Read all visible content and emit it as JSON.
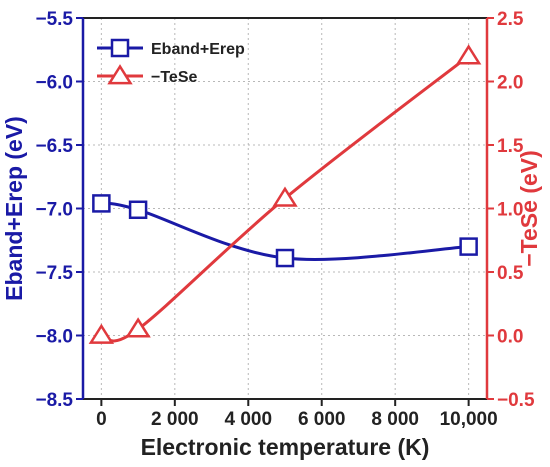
{
  "chart_data": {
    "type": "line",
    "dual_axis": true,
    "grid": true,
    "legend_position": "top-left",
    "xlabel": "Electronic temperature (K)",
    "ylabel_left": "Eband+Erep (eV)",
    "ylabel_right": "−TeSe (eV)",
    "xlim": [
      -500,
      10500
    ],
    "ylim_left": [
      -8.5,
      -5.5
    ],
    "ylim_right": [
      -0.5,
      2.5
    ],
    "x_ticks": [
      0,
      2000,
      4000,
      6000,
      8000,
      10000
    ],
    "x_tick_labels": [
      "0",
      "2 000",
      "4 000",
      "6 000",
      "8 000",
      "10,000"
    ],
    "y_left_ticks": [
      -8.5,
      -8.0,
      -7.5,
      -7.0,
      -6.5,
      -6.0,
      -5.5
    ],
    "y_left_tick_labels": [
      "−8.5",
      "−8.0",
      "−7.5",
      "−7.0",
      "−6.5",
      "−6.0",
      "−5.5"
    ],
    "y_right_ticks": [
      -0.5,
      0.0,
      0.5,
      1.0,
      1.5,
      2.0,
      2.5
    ],
    "y_right_tick_labels": [
      "−0.5",
      "0.0",
      "0.5",
      "1.0",
      "1.5",
      "2.0",
      "2.5"
    ],
    "series": [
      {
        "name": "Eband+Erep",
        "axis": "left",
        "marker": "square",
        "color": "#1a1aa6",
        "x": [
          0,
          1000,
          5000,
          10000
        ],
        "y": [
          -6.96,
          -7.01,
          -7.39,
          -7.3
        ]
      },
      {
        "name": "−TeSe",
        "axis": "right",
        "marker": "triangle",
        "color": "#e0393d",
        "x": [
          0,
          1000,
          5000,
          10000
        ],
        "y": [
          0.0,
          0.05,
          1.08,
          2.2
        ]
      }
    ],
    "colors": {
      "left_axis": "#1a1aa6",
      "right_axis": "#e0393d",
      "frame": "#222222",
      "grid": "#b8b8b8"
    }
  }
}
